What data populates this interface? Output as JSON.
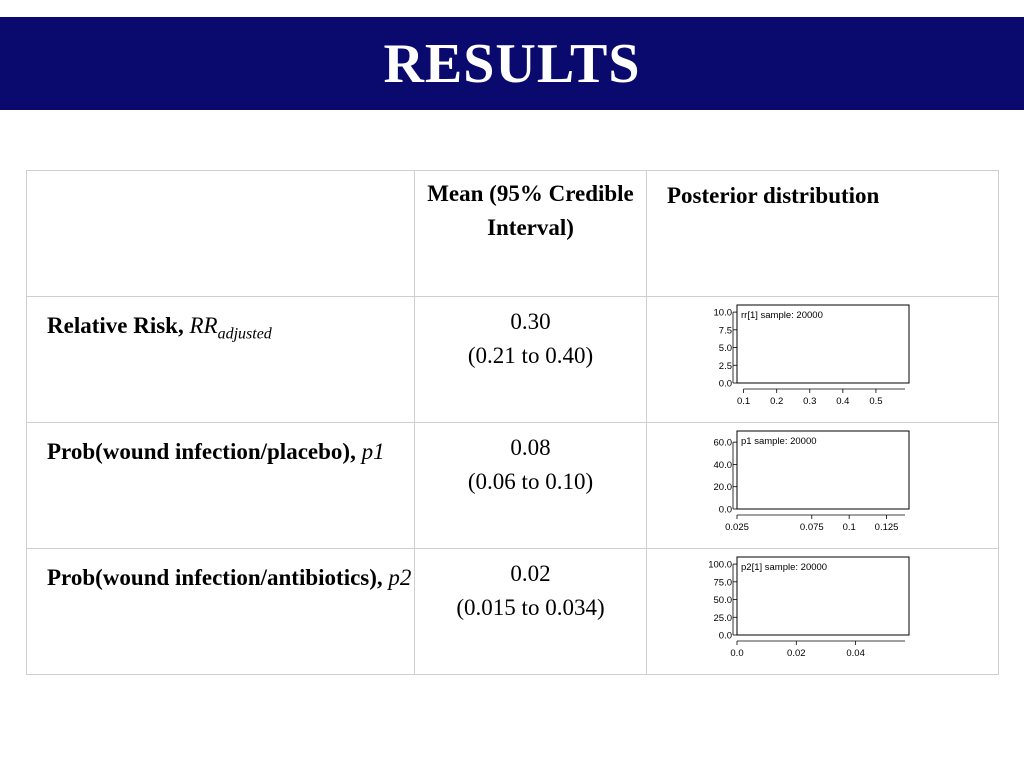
{
  "title": "RESULTS",
  "table": {
    "headers": {
      "blank": "",
      "mean": "Mean (95% Credible Interval)",
      "posterior": "Posterior distribution"
    },
    "rows": [
      {
        "label": "Relative Risk, ",
        "symbol": "RR",
        "subscript": "adjusted",
        "mean": "0.30",
        "interval": "(0.21 to 0.40)"
      },
      {
        "label": "Prob(wound infection/placebo), ",
        "symbol": "p1",
        "mean": "0.08",
        "interval": "(0.06 to 0.10)"
      },
      {
        "label": "Prob(wound infection/antibiotics), ",
        "symbol": "p2",
        "mean": "0.02",
        "interval": "(0.015 to 0.034)"
      }
    ]
  },
  "chart_data": [
    {
      "type": "area",
      "title": "rr[1] sample: 20000",
      "x_ticks": [
        "0.1",
        "0.2",
        "0.3",
        "0.4",
        "0.5"
      ],
      "y_ticks": [
        "10.0",
        "7.5",
        "5.0",
        "2.5",
        "0.0"
      ],
      "xlim": [
        0.08,
        0.6
      ],
      "ylim": [
        0,
        11
      ]
    },
    {
      "type": "area",
      "title": "p1 sample: 20000",
      "x_ticks": [
        "0.025",
        "0.075",
        "0.1",
        "0.125"
      ],
      "y_ticks": [
        "60.0",
        "40.0",
        "20.0",
        "0.0"
      ],
      "xlim": [
        0.025,
        0.14
      ],
      "ylim": [
        0,
        70
      ]
    },
    {
      "type": "area",
      "title": "p2[1] sample: 20000",
      "x_ticks": [
        "0.0",
        "0.02",
        "0.04"
      ],
      "y_ticks": [
        "100.0",
        "75.0",
        "50.0",
        "25.0",
        "0.0"
      ],
      "xlim": [
        0,
        0.058
      ],
      "ylim": [
        0,
        110
      ]
    }
  ]
}
